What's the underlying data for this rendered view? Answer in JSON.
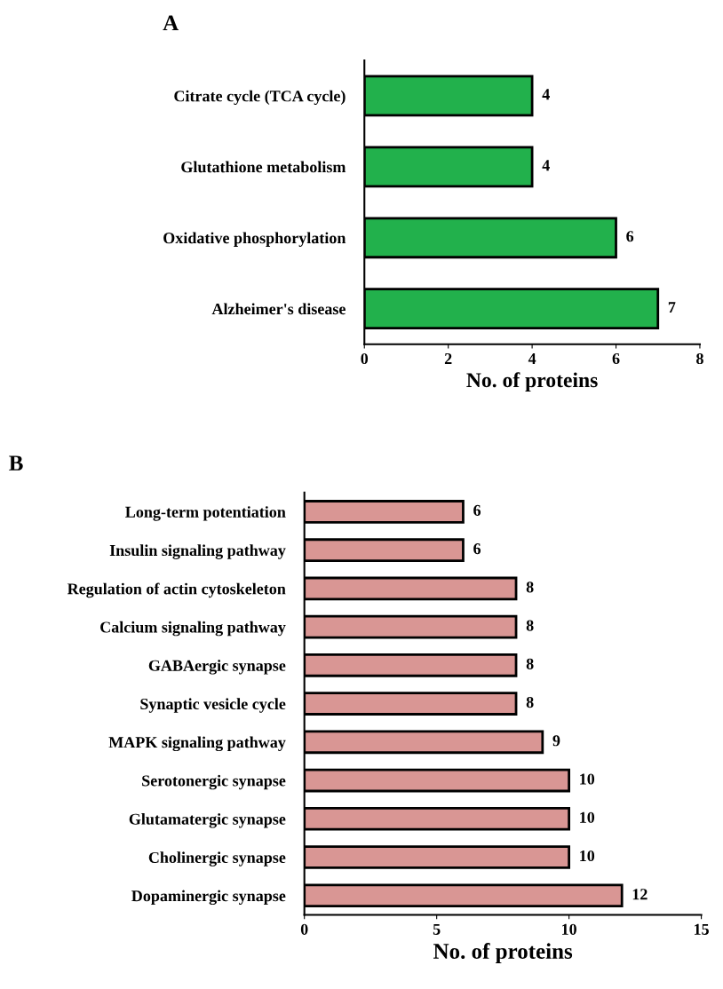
{
  "chart_data": [
    {
      "type": "bar",
      "title": "A",
      "orientation": "horizontal",
      "xlabel": "No. of proteins",
      "categories": [
        "Citrate cycle (TCA cycle)",
        "Glutathione metabolism",
        "Oxidative phosphorylation",
        "Alzheimer's disease"
      ],
      "values": [
        4,
        4,
        6,
        7
      ],
      "color": "#22b14c",
      "xlim": [
        0,
        8
      ],
      "xticks": [
        0,
        2,
        4,
        6,
        8
      ],
      "data_labels": true,
      "grid": false,
      "legend": false
    },
    {
      "type": "bar",
      "title": "B",
      "orientation": "horizontal",
      "xlabel": "No. of proteins",
      "categories": [
        "Long-term potentiation",
        "Insulin signaling pathway",
        "Regulation of actin cytoskeleton",
        "Calcium signaling pathway",
        "GABAergic synapse",
        "Synaptic vesicle cycle",
        "MAPK signaling pathway",
        "Serotonergic synapse",
        "Glutamatergic synapse",
        "Cholinergic synapse",
        "Dopaminergic synapse"
      ],
      "values": [
        6,
        6,
        8,
        8,
        8,
        8,
        9,
        10,
        10,
        10,
        12
      ],
      "color": "#d99694",
      "xlim": [
        0,
        15
      ],
      "xticks": [
        0,
        5,
        10,
        15
      ],
      "data_labels": true,
      "grid": false,
      "legend": false
    }
  ]
}
